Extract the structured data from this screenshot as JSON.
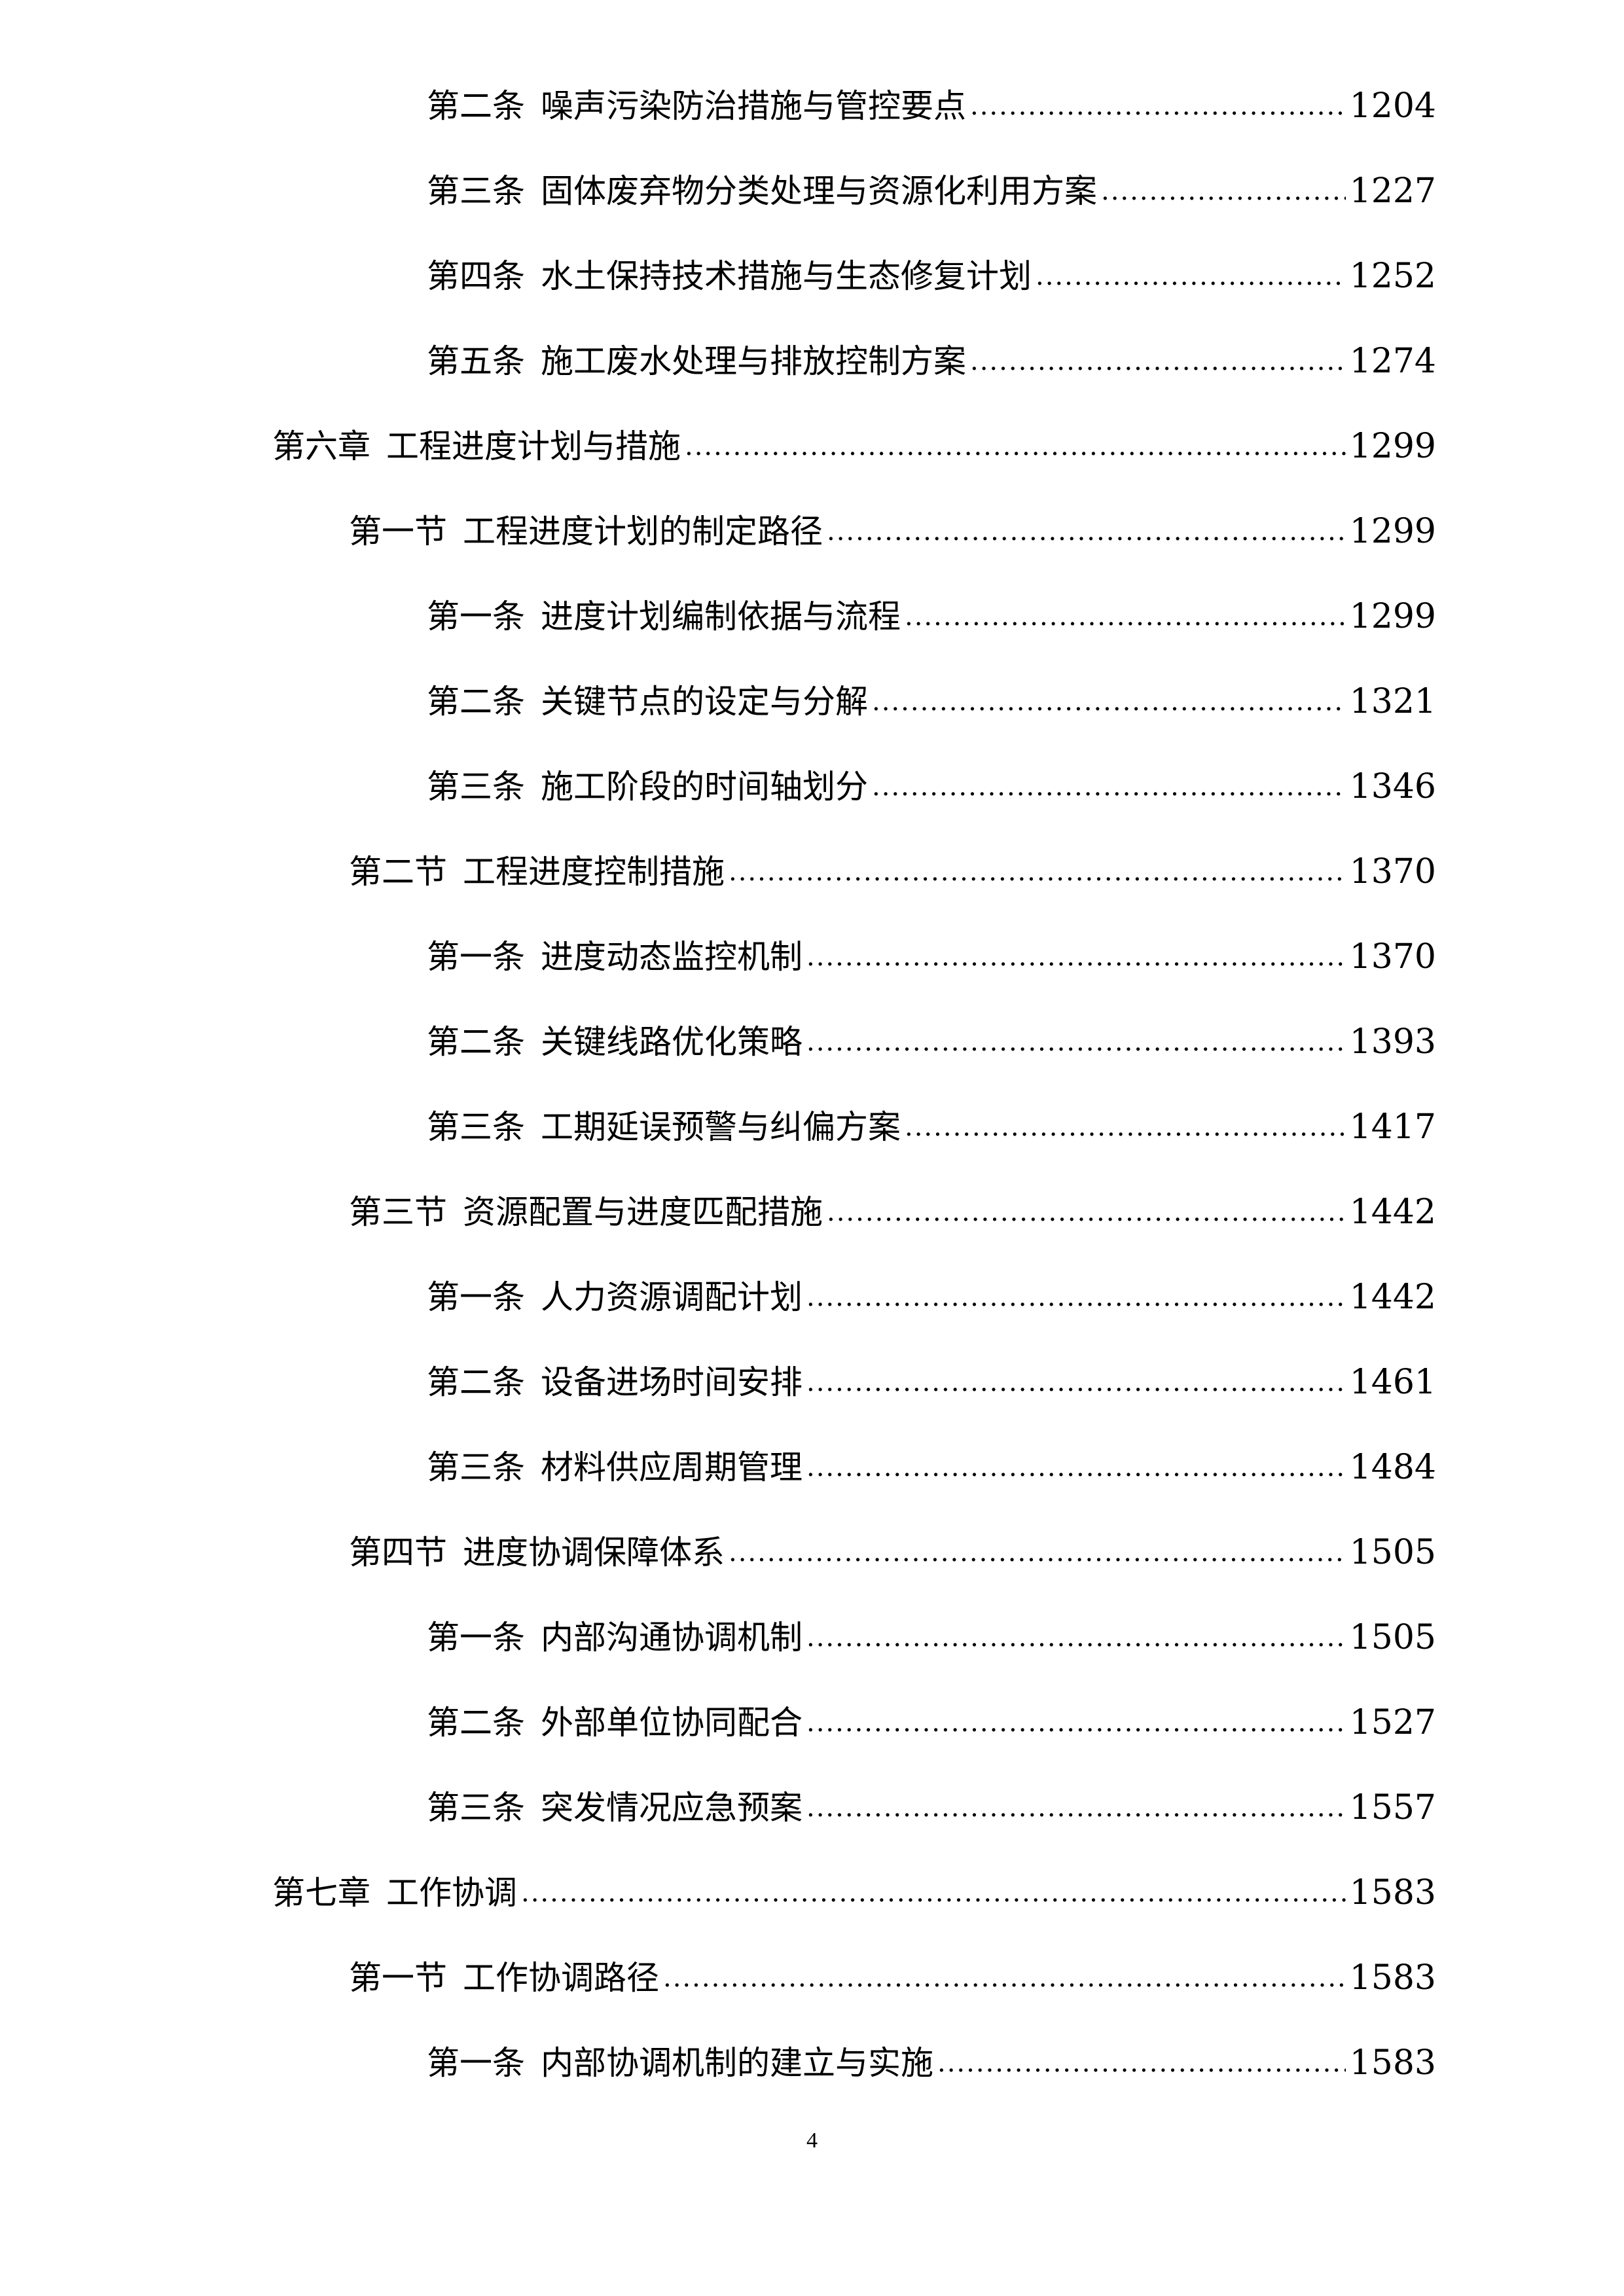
{
  "toc": [
    {
      "level": 3,
      "label": "第二条",
      "title": "噪声污染防治措施与管控要点",
      "page": "1204"
    },
    {
      "level": 3,
      "label": "第三条",
      "title": "固体废弃物分类处理与资源化利用方案",
      "page": "1227"
    },
    {
      "level": 3,
      "label": "第四条",
      "title": "水土保持技术措施与生态修复计划",
      "page": "1252"
    },
    {
      "level": 3,
      "label": "第五条",
      "title": "施工废水处理与排放控制方案",
      "page": "1274"
    },
    {
      "level": 1,
      "label": "第六章",
      "title": "工程进度计划与措施",
      "page": "1299"
    },
    {
      "level": 2,
      "label": "第一节",
      "title": "工程进度计划的制定路径",
      "page": "1299"
    },
    {
      "level": 3,
      "label": "第一条",
      "title": "进度计划编制依据与流程",
      "page": "1299"
    },
    {
      "level": 3,
      "label": "第二条",
      "title": "关键节点的设定与分解",
      "page": "1321"
    },
    {
      "level": 3,
      "label": "第三条",
      "title": "施工阶段的时间轴划分",
      "page": "1346"
    },
    {
      "level": 2,
      "label": "第二节",
      "title": "工程进度控制措施",
      "page": "1370"
    },
    {
      "level": 3,
      "label": "第一条",
      "title": "进度动态监控机制",
      "page": "1370"
    },
    {
      "level": 3,
      "label": "第二条",
      "title": "关键线路优化策略",
      "page": "1393"
    },
    {
      "level": 3,
      "label": "第三条",
      "title": "工期延误预警与纠偏方案",
      "page": "1417"
    },
    {
      "level": 2,
      "label": "第三节",
      "title": "资源配置与进度匹配措施",
      "page": "1442"
    },
    {
      "level": 3,
      "label": "第一条",
      "title": "人力资源调配计划",
      "page": "1442"
    },
    {
      "level": 3,
      "label": "第二条",
      "title": "设备进场时间安排",
      "page": "1461"
    },
    {
      "level": 3,
      "label": "第三条",
      "title": "材料供应周期管理",
      "page": "1484"
    },
    {
      "level": 2,
      "label": "第四节",
      "title": "进度协调保障体系",
      "page": "1505"
    },
    {
      "level": 3,
      "label": "第一条",
      "title": "内部沟通协调机制",
      "page": "1505"
    },
    {
      "level": 3,
      "label": "第二条",
      "title": "外部单位协同配合",
      "page": "1527"
    },
    {
      "level": 3,
      "label": "第三条",
      "title": "突发情况应急预案",
      "page": "1557"
    },
    {
      "level": 1,
      "label": "第七章",
      "title": "工作协调",
      "page": "1583"
    },
    {
      "level": 2,
      "label": "第一节",
      "title": "工作协调路径",
      "page": "1583"
    },
    {
      "level": 3,
      "label": "第一条",
      "title": "内部协调机制的建立与实施",
      "page": "1583"
    }
  ],
  "page_number": "4"
}
